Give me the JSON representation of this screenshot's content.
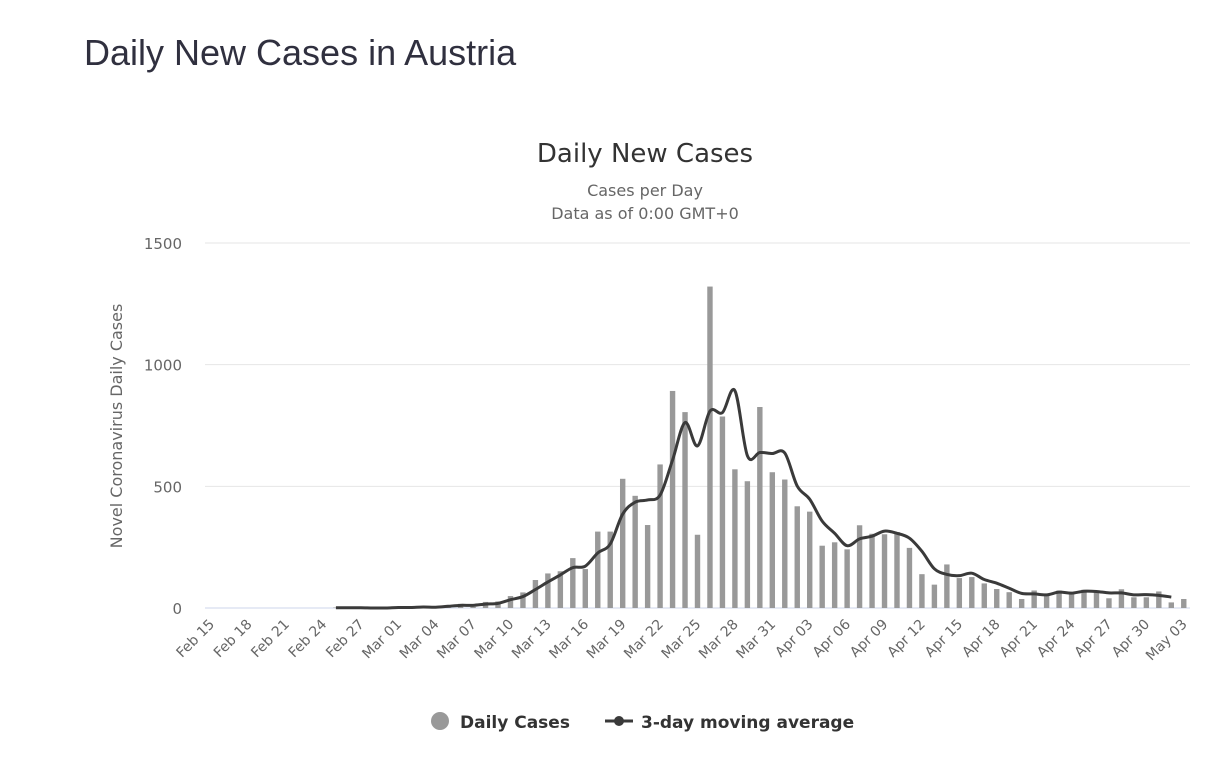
{
  "page": {
    "title": "Daily New Cases in Austria"
  },
  "chart_data": {
    "type": "bar",
    "title": "Daily New Cases",
    "subtitle": [
      "Cases per Day",
      "Data as of 0:00 GMT+0"
    ],
    "ylabel": "Novel Coronavirus Daily Cases",
    "xlabel": "",
    "ylim": [
      0,
      1500
    ],
    "yticks": [
      0,
      500,
      1000,
      1500
    ],
    "grid": true,
    "legend_placement": "bottom",
    "colors": {
      "bars": "#999999",
      "line": "#3a3a3a",
      "grid": "#e6e6e6",
      "axis": "#ccd6eb"
    },
    "start_date": "2020-02-15",
    "xtick_labels": [
      "Feb 15",
      "Feb 18",
      "Feb 21",
      "Feb 24",
      "Feb 27",
      "Mar 01",
      "Mar 04",
      "Mar 07",
      "Mar 10",
      "Mar 13",
      "Mar 16",
      "Mar 19",
      "Mar 22",
      "Mar 25",
      "Mar 28",
      "Mar 31",
      "Apr 03",
      "Apr 06",
      "Apr 09",
      "Apr 12",
      "Apr 15",
      "Apr 18",
      "Apr 21",
      "Apr 24",
      "Apr 27",
      "Apr 30",
      "May 03"
    ],
    "series": [
      {
        "name": "Daily Cases",
        "type": "bar",
        "values": [
          0,
          0,
          0,
          0,
          0,
          0,
          0,
          0,
          0,
          0,
          2,
          0,
          1,
          0,
          0,
          6,
          0,
          7,
          3,
          12,
          17,
          5,
          25,
          27,
          49,
          64,
          115,
          142,
          151,
          205,
          160,
          314,
          314,
          531,
          461,
          341,
          590,
          892,
          805,
          301,
          1321,
          787,
          570,
          521,
          826,
          558,
          528,
          418,
          396,
          256,
          270,
          241,
          340,
          305,
          303,
          312,
          247,
          139,
          96,
          179,
          123,
          127,
          101,
          78,
          65,
          37,
          72,
          52,
          72,
          60,
          75,
          70,
          40,
          77,
          44,
          44,
          68,
          23,
          37
        ]
      },
      {
        "name": "3-day moving average",
        "type": "line",
        "values": [
          null,
          null,
          null,
          null,
          null,
          null,
          null,
          null,
          null,
          null,
          1,
          1,
          1,
          0,
          0,
          2,
          2,
          4,
          3,
          7,
          11,
          11,
          16,
          19,
          34,
          47,
          76,
          107,
          136,
          166,
          172,
          226,
          263,
          386,
          435,
          444,
          464,
          608,
          762,
          666,
          809,
          803,
          893,
          626,
          639,
          635,
          637,
          501,
          447,
          357,
          307,
          256,
          284,
          295,
          316,
          307,
          287,
          233,
          161,
          138,
          133,
          143,
          117,
          102,
          81,
          60,
          58,
          54,
          65,
          61,
          69,
          68,
          62,
          62,
          54,
          55,
          52,
          45,
          null
        ]
      }
    ]
  }
}
